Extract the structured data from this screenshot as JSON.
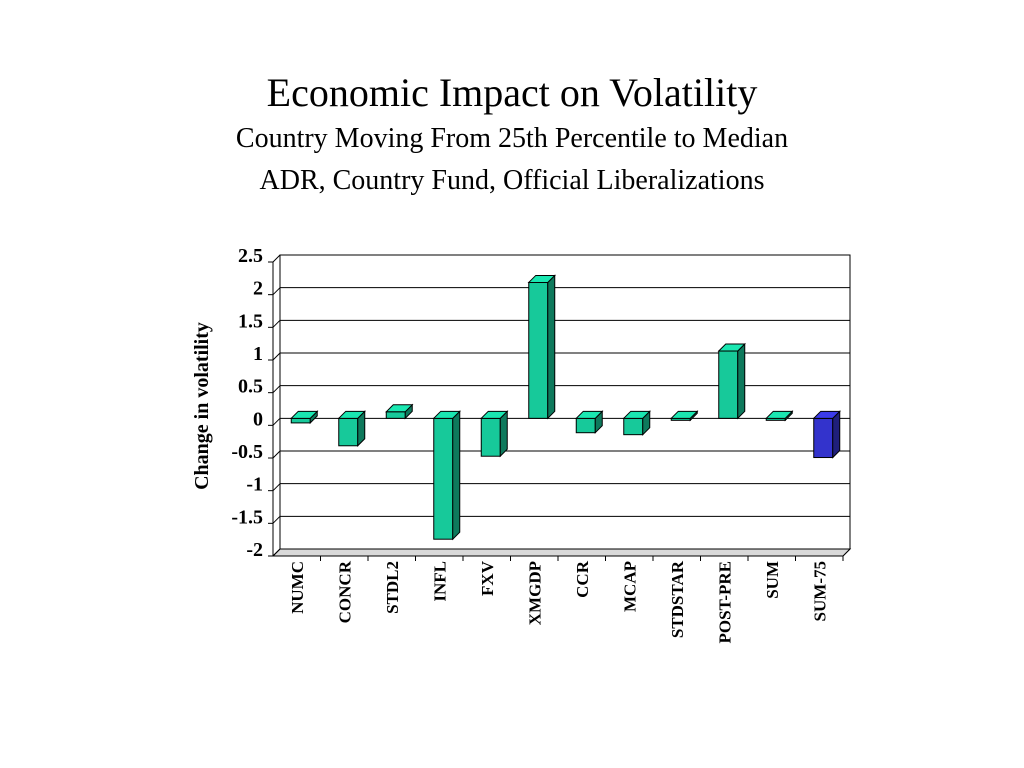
{
  "slide": {
    "title": "Economic Impact on Volatility",
    "subtitle_lines": [
      "Country Moving From 25th Percentile to Median",
      "ADR, Country Fund, Official Liberalizations"
    ]
  },
  "chart_data": {
    "type": "bar",
    "style": "3d-column",
    "title": "",
    "xlabel": "",
    "ylabel": "Change in volatility",
    "ylim": [
      -2,
      2.5
    ],
    "yticks": [
      2.5,
      2,
      1.5,
      1,
      0.5,
      0,
      -0.5,
      -1,
      -1.5,
      -2
    ],
    "ytick_labels": [
      "2.5",
      "2",
      "1.5",
      "1",
      "0.5",
      "0",
      "-0.5",
      "-1",
      "-1.5",
      "-2"
    ],
    "grid": true,
    "legend": "none",
    "categories": [
      "NUMC",
      "CONCR",
      "STDL2",
      "INFL",
      "FXV",
      "XMGDP",
      "CCR",
      "MCAP",
      "STDSTAR",
      "POST-PRE",
      "SUM",
      "SUM-75"
    ],
    "values": [
      -0.07,
      -0.42,
      0.1,
      -1.85,
      -0.58,
      2.08,
      -0.22,
      -0.25,
      -0.01,
      1.03,
      -0.03,
      -0.6
    ],
    "colors": [
      "#17c99a",
      "#17c99a",
      "#17c99a",
      "#17c99a",
      "#17c99a",
      "#17c99a",
      "#17c99a",
      "#17c99a",
      "#17c99a",
      "#17c99a",
      "#17c99a",
      "#3333cc"
    ]
  }
}
